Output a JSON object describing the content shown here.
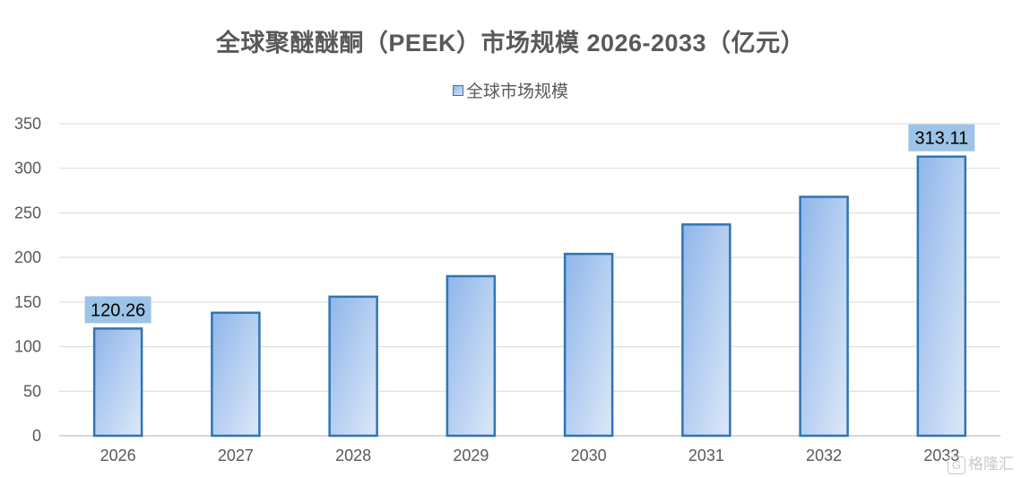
{
  "chart_data": {
    "type": "bar",
    "title": "全球聚醚醚酮（PEEK）市场规模 2026-2033（亿元）",
    "categories": [
      "2026",
      "2027",
      "2028",
      "2029",
      "2030",
      "2031",
      "2032",
      "2033"
    ],
    "series": [
      {
        "name": "全球市场规模",
        "values": [
          120.26,
          138,
          156,
          179,
          204,
          237,
          268,
          313.11
        ]
      }
    ],
    "data_labels": {
      "2026": "120.26",
      "2033": "313.11"
    },
    "yticks": [
      "0",
      "50",
      "100",
      "150",
      "200",
      "250",
      "300",
      "350"
    ],
    "ylim": [
      0,
      350
    ],
    "xlabel": "",
    "ylabel": "",
    "grid": true,
    "legend_position": "top",
    "colors": {
      "bar_fill_start": "#8FB6EA",
      "bar_fill_end": "#DDE8F8",
      "bar_stroke": "#2E75B6",
      "label_bg": "#9DC3E6",
      "grid": "#D9D9D9"
    }
  },
  "watermark": {
    "icon": "gelonghui-logo-icon",
    "text": "格隆汇"
  }
}
